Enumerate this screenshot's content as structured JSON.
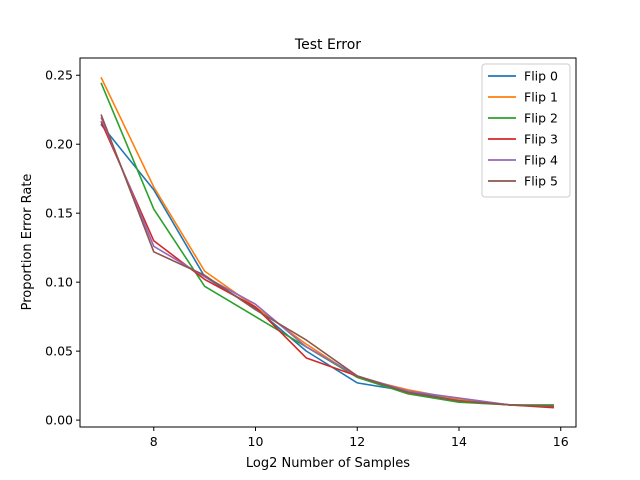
{
  "chart_data": {
    "type": "line",
    "title": "Test Error",
    "xlabel": "Log2 Number of Samples",
    "ylabel": "Proportion Error Rate",
    "xlim": [
      6.55,
      16.3
    ],
    "ylim": [
      -0.005,
      0.2625
    ],
    "xticks": [
      8,
      10,
      12,
      14,
      16
    ],
    "xtick_labels": [
      "8",
      "10",
      "12",
      "14",
      "16"
    ],
    "yticks": [
      0.0,
      0.05,
      0.1,
      0.15,
      0.2,
      0.25
    ],
    "ytick_labels": [
      "0.00",
      "0.05",
      "0.10",
      "0.15",
      "0.20",
      "0.25"
    ],
    "grid": false,
    "legend_position": "upper-right",
    "series": [
      {
        "name": "Flip 0",
        "color": "#1f77b4",
        "x": [
          6.97,
          8,
          9,
          10,
          11,
          12,
          13,
          14,
          15,
          15.85
        ],
        "y": [
          0.214,
          0.167,
          0.104,
          0.081,
          0.05,
          0.027,
          0.021,
          0.014,
          0.011,
          0.01
        ]
      },
      {
        "name": "Flip 1",
        "color": "#ff7f0e",
        "x": [
          6.97,
          8,
          9,
          10,
          11,
          12,
          13,
          14,
          15,
          15.85
        ],
        "y": [
          0.248,
          0.169,
          0.108,
          0.082,
          0.055,
          0.031,
          0.022,
          0.015,
          0.011,
          0.01
        ]
      },
      {
        "name": "Flip 2",
        "color": "#2ca02c",
        "x": [
          6.97,
          8,
          9,
          10,
          11,
          12,
          13,
          14,
          15,
          15.85
        ],
        "y": [
          0.244,
          0.153,
          0.097,
          0.075,
          0.053,
          0.031,
          0.019,
          0.013,
          0.011,
          0.011
        ]
      },
      {
        "name": "Flip 3",
        "color": "#d62728",
        "x": [
          6.97,
          8,
          9,
          10,
          11,
          12,
          13,
          14,
          15,
          15.85
        ],
        "y": [
          0.216,
          0.13,
          0.102,
          0.082,
          0.045,
          0.032,
          0.02,
          0.014,
          0.011,
          0.009
        ]
      },
      {
        "name": "Flip 4",
        "color": "#9467bd",
        "x": [
          6.97,
          8,
          9,
          10,
          11,
          12,
          13,
          14,
          15,
          15.85
        ],
        "y": [
          0.219,
          0.126,
          0.104,
          0.084,
          0.053,
          0.032,
          0.021,
          0.016,
          0.011,
          0.01
        ]
      },
      {
        "name": "Flip 5",
        "color": "#8c564b",
        "x": [
          6.97,
          8,
          9,
          10,
          11,
          12,
          13,
          14,
          15,
          15.85
        ],
        "y": [
          0.221,
          0.122,
          0.105,
          0.08,
          0.058,
          0.032,
          0.02,
          0.014,
          0.011,
          0.01
        ]
      }
    ]
  }
}
